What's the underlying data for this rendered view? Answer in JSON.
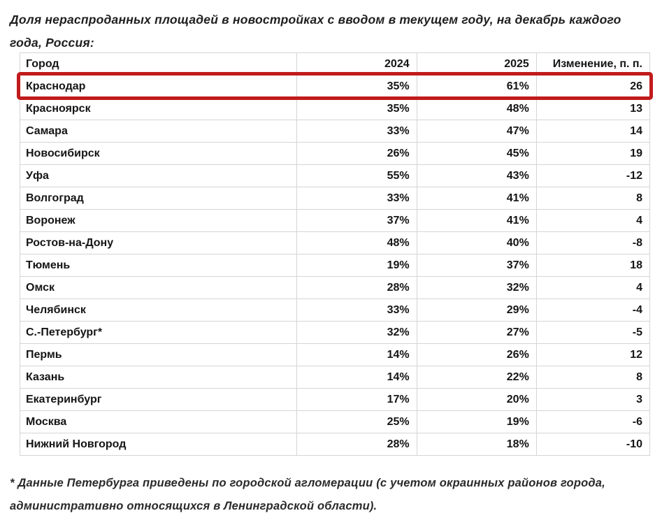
{
  "title": "Доля нераспроданных площадей в новостройках с вводом в текущем году, на декабрь каждого года, Россия:",
  "table": {
    "headers": {
      "city": "Город",
      "y2024": "2024",
      "y2025": "2025",
      "change": "Изменение, п. п."
    },
    "rows": [
      {
        "city": "Краснодар",
        "y2024": "35%",
        "y2025": "61%",
        "change": "26",
        "highlighted": true
      },
      {
        "city": "Красноярск",
        "y2024": "35%",
        "y2025": "48%",
        "change": "13"
      },
      {
        "city": "Самара",
        "y2024": "33%",
        "y2025": "47%",
        "change": "14"
      },
      {
        "city": "Новосибирск",
        "y2024": "26%",
        "y2025": "45%",
        "change": "19"
      },
      {
        "city": "Уфа",
        "y2024": "55%",
        "y2025": "43%",
        "change": "-12"
      },
      {
        "city": "Волгоград",
        "y2024": "33%",
        "y2025": "41%",
        "change": "8"
      },
      {
        "city": "Воронеж",
        "y2024": "37%",
        "y2025": "41%",
        "change": "4"
      },
      {
        "city": "Ростов-на-Дону",
        "y2024": "48%",
        "y2025": "40%",
        "change": "-8"
      },
      {
        "city": "Тюмень",
        "y2024": "19%",
        "y2025": "37%",
        "change": "18"
      },
      {
        "city": "Омск",
        "y2024": "28%",
        "y2025": "32%",
        "change": "4"
      },
      {
        "city": "Челябинск",
        "y2024": "33%",
        "y2025": "29%",
        "change": "-4"
      },
      {
        "city": "С.-Петербург*",
        "y2024": "32%",
        "y2025": "27%",
        "change": "-5"
      },
      {
        "city": "Пермь",
        "y2024": "14%",
        "y2025": "26%",
        "change": "12"
      },
      {
        "city": "Казань",
        "y2024": "14%",
        "y2025": "22%",
        "change": "8"
      },
      {
        "city": "Екатеринбург",
        "y2024": "17%",
        "y2025": "20%",
        "change": "3"
      },
      {
        "city": "Москва",
        "y2024": "25%",
        "y2025": "19%",
        "change": "-6"
      },
      {
        "city": "Нижний Новгород",
        "y2024": "28%",
        "y2025": "18%",
        "change": "-10"
      }
    ]
  },
  "highlight": {
    "row": "Краснодар",
    "color": "#c11b1b"
  },
  "footnote": "* Данные Петербурга приведены по городской агломерации (с учетом окраинных районов города, административно относящихся в Ленинградской области).",
  "chart_data": {
    "type": "table",
    "title": "Доля нераспроданных площадей в новостройках с вводом в текущем году, на декабрь каждого года, Россия:",
    "columns": [
      "Город",
      "2024",
      "2025",
      "Изменение, п. п."
    ],
    "rows": [
      [
        "Краснодар",
        "35%",
        "61%",
        26
      ],
      [
        "Красноярск",
        "35%",
        "48%",
        13
      ],
      [
        "Самара",
        "33%",
        "47%",
        14
      ],
      [
        "Новосибирск",
        "26%",
        "45%",
        19
      ],
      [
        "Уфа",
        "55%",
        "43%",
        -12
      ],
      [
        "Волгоград",
        "33%",
        "41%",
        8
      ],
      [
        "Воронеж",
        "37%",
        "41%",
        4
      ],
      [
        "Ростов-на-Дону",
        "48%",
        "40%",
        -8
      ],
      [
        "Тюмень",
        "19%",
        "37%",
        18
      ],
      [
        "Омск",
        "28%",
        "32%",
        4
      ],
      [
        "Челябинск",
        "33%",
        "29%",
        -4
      ],
      [
        "С.-Петербург*",
        "32%",
        "27%",
        -5
      ],
      [
        "Пермь",
        "14%",
        "26%",
        12
      ],
      [
        "Казань",
        "14%",
        "22%",
        8
      ],
      [
        "Екатеринбург",
        "17%",
        "20%",
        3
      ],
      [
        "Москва",
        "25%",
        "19%",
        -6
      ],
      [
        "Нижний Новгород",
        "28%",
        "18%",
        -10
      ]
    ],
    "highlighted_row": "Краснодар",
    "footnote": "* Данные Петербурга приведены по городской агломерации (с учетом окраинных районов города, административно относящихся в Ленинградской области)."
  }
}
